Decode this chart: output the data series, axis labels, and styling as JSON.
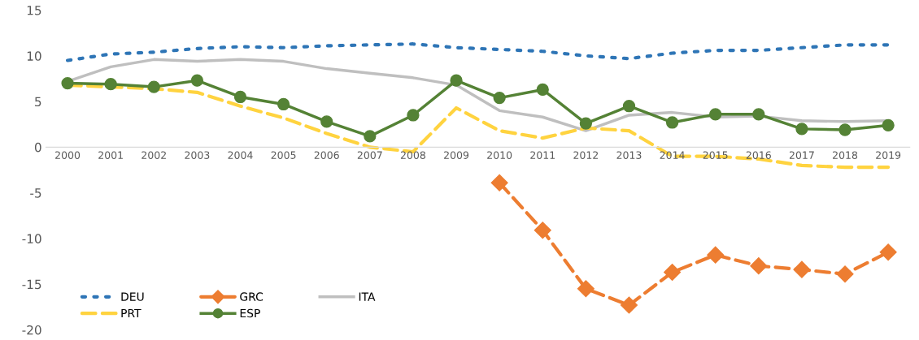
{
  "chart_data": {
    "type": "line",
    "categories": [
      "2000",
      "2001",
      "2002",
      "2003",
      "2004",
      "2005",
      "2006",
      "2007",
      "2008",
      "2009",
      "2010",
      "2011",
      "2012",
      "2013",
      "2014",
      "2015",
      "2016",
      "2017",
      "2018",
      "2019"
    ],
    "series": [
      {
        "name": "DEU",
        "color": "#2e75b6",
        "line_style": "dotted",
        "marker": "none",
        "values": [
          9.5,
          10.2,
          10.4,
          10.8,
          11.0,
          10.9,
          11.1,
          11.2,
          11.3,
          10.9,
          10.7,
          10.5,
          10.0,
          9.7,
          10.3,
          10.6,
          10.6,
          10.9,
          11.2,
          11.2
        ]
      },
      {
        "name": "GRC",
        "color": "#ed7d31",
        "line_style": "dashed",
        "marker": "diamond",
        "values": [
          null,
          null,
          null,
          null,
          null,
          null,
          null,
          null,
          null,
          null,
          -3.9,
          -9.1,
          -15.5,
          -17.3,
          -13.7,
          -11.8,
          -13.0,
          -13.4,
          -13.9,
          -11.5
        ]
      },
      {
        "name": "ITA",
        "color": "#bfbfbf",
        "line_style": "solid",
        "marker": "none",
        "values": [
          7.2,
          8.8,
          9.6,
          9.4,
          9.6,
          9.4,
          8.6,
          8.1,
          7.6,
          6.8,
          4.0,
          3.3,
          1.8,
          3.5,
          3.8,
          3.3,
          3.4,
          2.9,
          2.8,
          2.9
        ]
      },
      {
        "name": "PRT",
        "color": "#ffd33f",
        "line_style": "dashed",
        "marker": "none",
        "values": [
          6.8,
          6.6,
          6.4,
          6.0,
          4.5,
          3.2,
          1.5,
          0.0,
          -0.5,
          4.3,
          1.8,
          1.0,
          2.1,
          1.8,
          -1.0,
          -1.0,
          -1.3,
          -2.0,
          -2.2,
          -2.2
        ]
      },
      {
        "name": "ESP",
        "color": "#548235",
        "line_style": "solid",
        "marker": "circle",
        "values": [
          7.0,
          6.9,
          6.6,
          7.3,
          5.5,
          4.7,
          2.8,
          1.2,
          3.5,
          7.3,
          5.4,
          6.3,
          2.6,
          4.5,
          2.7,
          3.6,
          3.6,
          2.0,
          1.9,
          2.4
        ]
      }
    ],
    "ylim": [
      -20,
      15
    ],
    "yticks": [
      -20,
      -15,
      -10,
      -5,
      0,
      5,
      10,
      15
    ],
    "grid": false,
    "legend": "bottom left"
  }
}
